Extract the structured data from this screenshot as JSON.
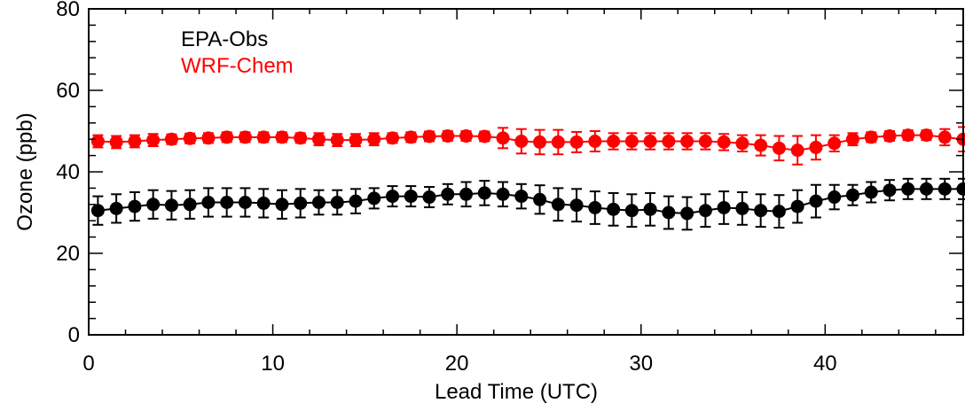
{
  "chart_data": {
    "type": "scatter",
    "title": "",
    "xlabel": "Lead Time (UTC)",
    "ylabel": "Ozone (ppb)",
    "xlim": [
      0,
      47.5
    ],
    "ylim": [
      0,
      80
    ],
    "xticks": [
      0,
      10,
      20,
      30,
      40
    ],
    "yticks": [
      0,
      20,
      40,
      60,
      80
    ],
    "grid": false,
    "legend_position": "top-left",
    "series": [
      {
        "name": "EPA-Obs",
        "color": "#000000",
        "x": [
          0.5,
          1.5,
          2.5,
          3.5,
          4.5,
          5.5,
          6.5,
          7.5,
          8.5,
          9.5,
          10.5,
          11.5,
          12.5,
          13.5,
          14.5,
          15.5,
          16.5,
          17.5,
          18.5,
          19.5,
          20.5,
          21.5,
          22.5,
          23.5,
          24.5,
          25.5,
          26.5,
          27.5,
          28.5,
          29.5,
          30.5,
          31.5,
          32.5,
          33.5,
          34.5,
          35.5,
          36.5,
          37.5,
          38.5,
          39.5,
          40.5,
          41.5,
          42.5,
          43.5,
          44.5,
          45.5,
          46.5,
          47.5
        ],
        "y": [
          30.5,
          31.0,
          31.5,
          32.0,
          31.8,
          32.0,
          32.5,
          32.5,
          32.5,
          32.3,
          32.0,
          32.3,
          32.5,
          32.5,
          32.8,
          33.5,
          34.0,
          34.0,
          33.8,
          34.5,
          34.5,
          34.8,
          34.5,
          34.0,
          33.2,
          32.0,
          31.8,
          31.2,
          30.8,
          30.5,
          30.8,
          30.0,
          29.8,
          30.5,
          31.2,
          31.0,
          30.5,
          30.3,
          31.5,
          32.8,
          33.8,
          34.3,
          35.0,
          35.5,
          35.8,
          35.8,
          35.8,
          35.8
        ],
        "err": [
          3.5,
          3.5,
          3.5,
          3.5,
          3.5,
          3.5,
          3.5,
          3.5,
          3.5,
          3.5,
          3.5,
          3.5,
          3.0,
          3.0,
          3.0,
          2.5,
          2.5,
          2.5,
          2.5,
          2.5,
          3.0,
          3.0,
          3.0,
          3.0,
          3.5,
          4.0,
          4.0,
          4.0,
          4.0,
          4.0,
          4.0,
          4.0,
          4.0,
          4.0,
          4.0,
          4.0,
          4.0,
          4.0,
          4.0,
          4.0,
          3.0,
          2.5,
          2.5,
          2.5,
          2.5,
          2.5,
          2.5,
          2.5
        ]
      },
      {
        "name": "WRF-Chem",
        "color": "#ff0000",
        "x": [
          0.5,
          1.5,
          2.5,
          3.5,
          4.5,
          5.5,
          6.5,
          7.5,
          8.5,
          9.5,
          10.5,
          11.5,
          12.5,
          13.5,
          14.5,
          15.5,
          16.5,
          17.5,
          18.5,
          19.5,
          20.5,
          21.5,
          22.5,
          23.5,
          24.5,
          25.5,
          26.5,
          27.5,
          28.5,
          29.5,
          30.5,
          31.5,
          32.5,
          33.5,
          34.5,
          35.5,
          36.5,
          37.5,
          38.5,
          39.5,
          40.5,
          41.5,
          42.5,
          43.5,
          44.5,
          45.5,
          46.5,
          47.5
        ],
        "y": [
          47.5,
          47.3,
          47.5,
          47.8,
          48.0,
          48.2,
          48.3,
          48.5,
          48.5,
          48.5,
          48.5,
          48.3,
          48.0,
          47.8,
          47.8,
          48.0,
          48.3,
          48.5,
          48.7,
          48.8,
          48.8,
          48.7,
          48.3,
          47.5,
          47.3,
          47.3,
          47.3,
          47.5,
          47.5,
          47.5,
          47.5,
          47.5,
          47.5,
          47.5,
          47.3,
          47.0,
          46.5,
          45.8,
          45.3,
          46.0,
          47.0,
          48.0,
          48.5,
          48.8,
          49.0,
          49.0,
          48.5,
          48.0
        ],
        "err": [
          1.5,
          1.5,
          1.5,
          1.5,
          1.2,
          1.2,
          1.2,
          1.2,
          1.2,
          1.2,
          1.2,
          1.2,
          1.5,
          1.5,
          1.5,
          1.5,
          1.2,
          1.2,
          1.2,
          1.2,
          1.2,
          1.2,
          2.5,
          3.0,
          3.0,
          3.0,
          2.5,
          2.5,
          2.0,
          2.0,
          2.0,
          2.0,
          2.0,
          2.0,
          2.0,
          2.0,
          2.5,
          3.0,
          3.5,
          3.0,
          2.0,
          1.5,
          1.2,
          1.2,
          1.2,
          1.2,
          2.0,
          3.0
        ]
      }
    ]
  }
}
